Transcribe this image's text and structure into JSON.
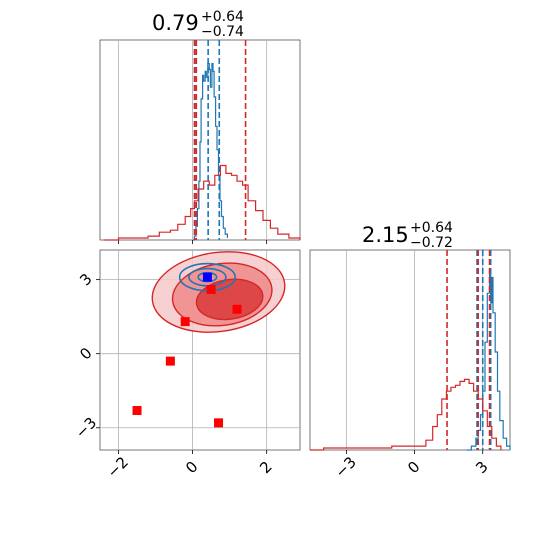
{
  "chart_data": [
    {
      "panel": "marginal-param-1",
      "type": "histogram",
      "title": {
        "main": "0.79",
        "sup": "+0.64",
        "sub": "−0.74"
      },
      "xlim": [
        -2.5,
        2.9
      ],
      "x_ticks": [
        -2,
        0,
        2
      ],
      "grid": true,
      "series": [
        {
          "name": "",
          "color": "#1f77b4",
          "points": [
            [
              0.02,
              0.0
            ],
            [
              0.05,
              0.02
            ],
            [
              0.09,
              0.07
            ],
            [
              0.13,
              0.16
            ],
            [
              0.17,
              0.3
            ],
            [
              0.2,
              0.5
            ],
            [
              0.23,
              0.72
            ],
            [
              0.27,
              0.84
            ],
            [
              0.3,
              0.81
            ],
            [
              0.34,
              0.86
            ],
            [
              0.37,
              0.83
            ],
            [
              0.41,
              0.9
            ],
            [
              0.45,
              0.87
            ],
            [
              0.48,
              0.78
            ],
            [
              0.52,
              0.9
            ],
            [
              0.55,
              0.86
            ],
            [
              0.58,
              0.73
            ],
            [
              0.62,
              0.58
            ],
            [
              0.66,
              0.46
            ],
            [
              0.7,
              0.33
            ],
            [
              0.74,
              0.2
            ],
            [
              0.78,
              0.12
            ],
            [
              0.83,
              0.06
            ],
            [
              0.88,
              0.03
            ],
            [
              0.94,
              0.01
            ]
          ],
          "quantile_lines": [
            0.09,
            0.42,
            0.72
          ]
        },
        {
          "name": "",
          "color": "#d62728",
          "points": [
            [
              -2.4,
              0.0
            ],
            [
              -2.0,
              0.01
            ],
            [
              -1.6,
              0.01
            ],
            [
              -1.2,
              0.02
            ],
            [
              -0.9,
              0.04
            ],
            [
              -0.6,
              0.05
            ],
            [
              -0.4,
              0.08
            ],
            [
              -0.2,
              0.12
            ],
            [
              -0.05,
              0.16
            ],
            [
              0.05,
              0.2
            ],
            [
              0.15,
              0.26
            ],
            [
              0.3,
              0.3
            ],
            [
              0.45,
              0.28
            ],
            [
              0.6,
              0.33
            ],
            [
              0.75,
              0.38
            ],
            [
              0.9,
              0.34
            ],
            [
              1.05,
              0.33
            ],
            [
              1.2,
              0.3
            ],
            [
              1.35,
              0.28
            ],
            [
              1.5,
              0.2
            ],
            [
              1.7,
              0.15
            ],
            [
              1.9,
              0.1
            ],
            [
              2.1,
              0.06
            ],
            [
              2.3,
              0.03
            ],
            [
              2.6,
              0.01
            ],
            [
              2.9,
              0.0
            ]
          ],
          "quantile_lines": [
            0.05,
            0.1,
            1.43
          ]
        }
      ]
    },
    {
      "panel": "joint-param-1-param-2",
      "type": "contour",
      "xlim": [
        -2.5,
        2.9
      ],
      "ylim": [
        -3.9,
        4.2
      ],
      "x_ticks": [
        -2,
        0,
        2
      ],
      "y_ticks": [
        3,
        0,
        -3
      ],
      "grid": true,
      "points_red": [
        [
          0.5,
          2.6
        ],
        [
          -0.2,
          1.3
        ],
        [
          1.2,
          1.8
        ],
        [
          -0.6,
          -0.3
        ],
        [
          -1.5,
          -2.3
        ],
        [
          0.7,
          -2.8
        ]
      ],
      "points_blue": [
        [
          0.4,
          3.1
        ]
      ],
      "contours_red": [
        {
          "level": "outer",
          "center": [
            0.7,
            2.5
          ],
          "rx": 1.8,
          "ry": 1.6
        },
        {
          "level": "mid",
          "center": [
            0.8,
            2.4
          ],
          "rx": 1.35,
          "ry": 1.25
        },
        {
          "level": "inner",
          "center": [
            1.0,
            2.2
          ],
          "rx": 0.9,
          "ry": 0.8
        }
      ],
      "contours_blue": [
        {
          "center": [
            0.4,
            3.1
          ],
          "rx": 0.75,
          "ry": 0.55
        },
        {
          "center": [
            0.4,
            3.1
          ],
          "rx": 0.5,
          "ry": 0.35
        },
        {
          "center": [
            0.4,
            3.1
          ],
          "rx": 0.25,
          "ry": 0.18
        }
      ]
    },
    {
      "panel": "marginal-param-2",
      "type": "histogram",
      "title": {
        "main": "2.15",
        "sup": "+0.64",
        "sub": "−0.72"
      },
      "xlim": [
        -4.6,
        4.2
      ],
      "x_ticks": [
        -3,
        0,
        3
      ],
      "grid": true,
      "series": [
        {
          "name": "",
          "color": "#1f77b4",
          "points": [
            [
              2.3,
              0.0
            ],
            [
              2.5,
              0.02
            ],
            [
              2.7,
              0.06
            ],
            [
              2.8,
              0.1
            ],
            [
              2.9,
              0.18
            ],
            [
              3.0,
              0.3
            ],
            [
              3.1,
              0.55
            ],
            [
              3.2,
              0.8
            ],
            [
              3.3,
              0.9
            ],
            [
              3.35,
              0.75
            ],
            [
              3.4,
              0.88
            ],
            [
              3.45,
              0.7
            ],
            [
              3.55,
              0.5
            ],
            [
              3.65,
              0.3
            ],
            [
              3.75,
              0.15
            ],
            [
              3.9,
              0.06
            ],
            [
              4.05,
              0.02
            ],
            [
              4.2,
              0.0
            ]
          ],
          "quantile_lines": [
            2.75,
            3.0,
            3.35
          ]
        },
        {
          "name": "",
          "color": "#d62728",
          "points": [
            [
              -4.6,
              0.0
            ],
            [
              -4.0,
              0.01
            ],
            [
              -3.0,
              0.01
            ],
            [
              -2.0,
              0.01
            ],
            [
              -1.0,
              0.02
            ],
            [
              0.0,
              0.02
            ],
            [
              0.5,
              0.05
            ],
            [
              0.8,
              0.12
            ],
            [
              1.0,
              0.18
            ],
            [
              1.2,
              0.26
            ],
            [
              1.4,
              0.3
            ],
            [
              1.6,
              0.32
            ],
            [
              1.8,
              0.33
            ],
            [
              2.0,
              0.35
            ],
            [
              2.2,
              0.36
            ],
            [
              2.4,
              0.34
            ],
            [
              2.6,
              0.3
            ],
            [
              2.8,
              0.26
            ],
            [
              3.0,
              0.2
            ],
            [
              3.2,
              0.12
            ],
            [
              3.4,
              0.06
            ],
            [
              3.6,
              0.02
            ],
            [
              3.8,
              0.0
            ]
          ],
          "quantile_lines": [
            1.43,
            2.8,
            3.3
          ]
        }
      ]
    }
  ]
}
